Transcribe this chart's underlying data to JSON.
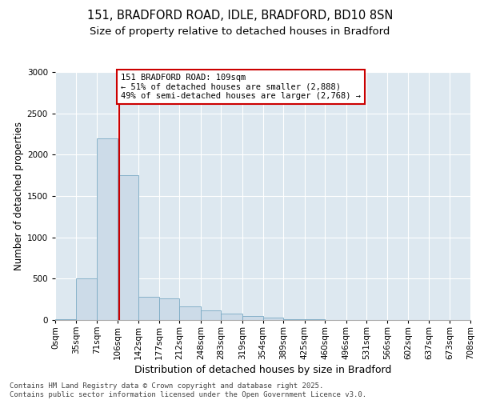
{
  "title1": "151, BRADFORD ROAD, IDLE, BRADFORD, BD10 8SN",
  "title2": "Size of property relative to detached houses in Bradford",
  "xlabel": "Distribution of detached houses by size in Bradford",
  "ylabel": "Number of detached properties",
  "bin_labels": [
    "0sqm",
    "35sqm",
    "71sqm",
    "106sqm",
    "142sqm",
    "177sqm",
    "212sqm",
    "248sqm",
    "283sqm",
    "319sqm",
    "354sqm",
    "389sqm",
    "425sqm",
    "460sqm",
    "496sqm",
    "531sqm",
    "566sqm",
    "602sqm",
    "637sqm",
    "673sqm",
    "708sqm"
  ],
  "bin_edges": [
    0,
    35,
    71,
    106,
    142,
    177,
    212,
    248,
    283,
    319,
    354,
    389,
    425,
    460,
    496,
    531,
    566,
    602,
    637,
    673,
    708
  ],
  "values": [
    5,
    500,
    2200,
    1750,
    280,
    260,
    160,
    120,
    80,
    50,
    30,
    10,
    5,
    3,
    1,
    1,
    0,
    0,
    0,
    0
  ],
  "bar_color": "#ccdbe8",
  "bar_edge_color": "#7aaac4",
  "property_line_x": 109,
  "property_line_color": "#cc0000",
  "annotation_text": "151 BRADFORD ROAD: 109sqm\n← 51% of detached houses are smaller (2,888)\n49% of semi-detached houses are larger (2,768) →",
  "annotation_box_color": "#cc0000",
  "ylim": [
    0,
    3000
  ],
  "yticks": [
    0,
    500,
    1000,
    1500,
    2000,
    2500,
    3000
  ],
  "background_color": "#dde8f0",
  "grid_color": "#ffffff",
  "footer_text": "Contains HM Land Registry data © Crown copyright and database right 2025.\nContains public sector information licensed under the Open Government Licence v3.0.",
  "title_fontsize": 10.5,
  "subtitle_fontsize": 9.5,
  "ylabel_fontsize": 8.5,
  "xlabel_fontsize": 9,
  "tick_fontsize": 7.5,
  "annotation_fontsize": 7.5,
  "footer_fontsize": 6.5
}
